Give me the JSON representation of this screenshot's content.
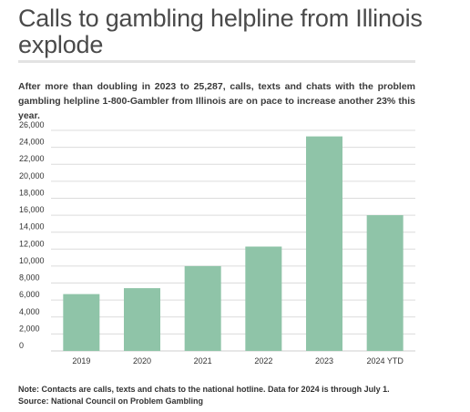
{
  "header": {
    "title": "Calls to gambling helpline from Illinois explode",
    "subtitle": "After more than doubling in 2023 to 25,287, calls, texts and chats with the problem gambling helpline 1-800-Gambler from Illinois are on pace to increase another 23% this year."
  },
  "footer": {
    "note": "Note: Contacts are calls, texts and chats to the national hotline. Data for 2024 is through July 1.",
    "source": "Source: National Council on Problem Gambling"
  },
  "chart_data": {
    "type": "bar",
    "categories": [
      "2019",
      "2020",
      "2021",
      "2022",
      "2023",
      "2024 YTD"
    ],
    "values": [
      6700,
      7400,
      10000,
      12300,
      25287,
      16000
    ],
    "ylim": [
      0,
      26000
    ],
    "yticks": [
      0,
      2000,
      4000,
      6000,
      8000,
      10000,
      12000,
      14000,
      16000,
      18000,
      20000,
      22000,
      24000,
      26000
    ],
    "ytick_labels": [
      "0",
      "2,000",
      "4,000",
      "6,000",
      "8,000",
      "10,000",
      "12,000",
      "14,000",
      "16,000",
      "18,000",
      "20,000",
      "22,000",
      "24,000",
      "26,000"
    ],
    "grid": true,
    "bar_color": "#8fc4a8",
    "grid_color": "#dcdcdc"
  }
}
